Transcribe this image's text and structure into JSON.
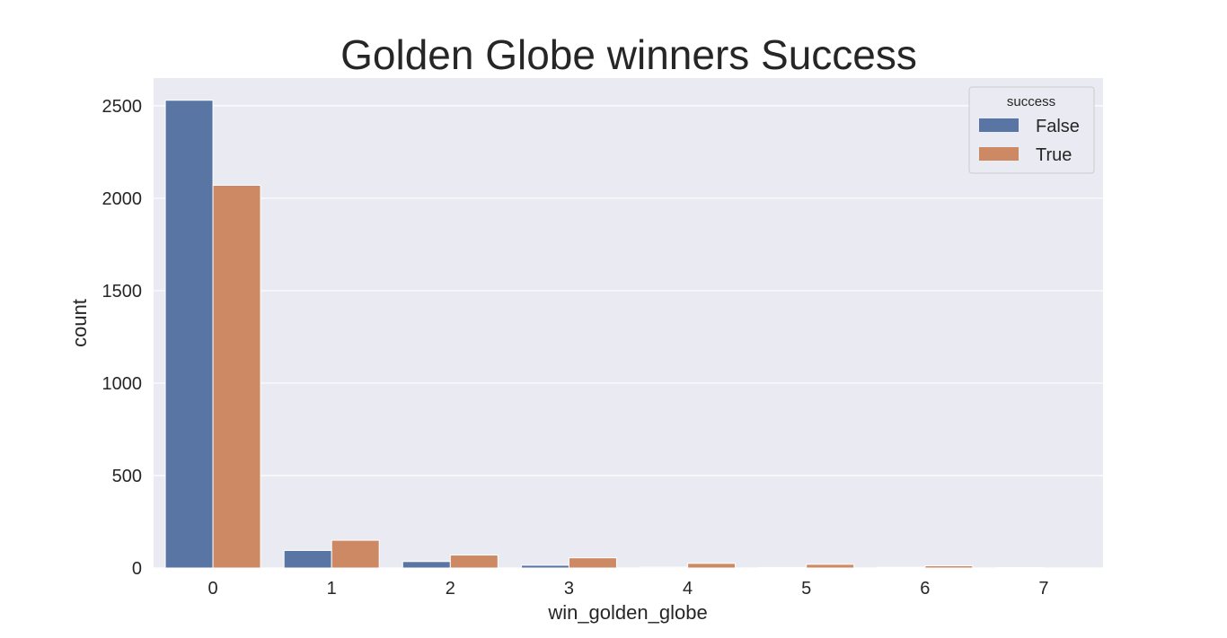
{
  "chart_data": {
    "type": "bar",
    "title": "Golden Globe winners Success",
    "xlabel": "win_golden_globe",
    "ylabel": "count",
    "categories": [
      "0",
      "1",
      "2",
      "3",
      "4",
      "5",
      "6",
      "7"
    ],
    "series": [
      {
        "name": "False",
        "color": "#5875a4",
        "values": [
          2530,
          95,
          35,
          15,
          5,
          3,
          4,
          2
        ]
      },
      {
        "name": "True",
        "color": "#cc8963",
        "values": [
          2070,
          150,
          70,
          55,
          25,
          20,
          12,
          0
        ]
      }
    ],
    "ylim": [
      0,
      2650
    ],
    "yticks": [
      0,
      500,
      1000,
      1500,
      2000,
      2500
    ],
    "legend": {
      "title": "success",
      "placement": "top-right"
    },
    "grid": true,
    "background_color": "#eaeaf2",
    "grid_color": "#ffffff"
  }
}
